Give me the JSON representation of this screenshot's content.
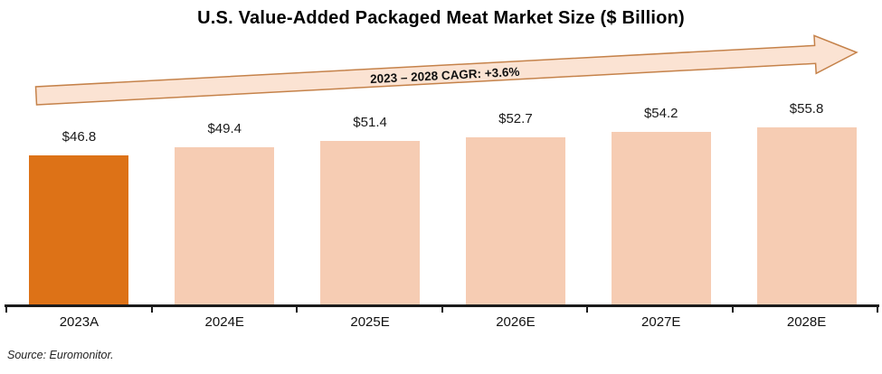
{
  "title": "U.S. Value-Added Packaged Meat Market Size ($ Billion)",
  "source": "Source: Euromonitor.",
  "colors": {
    "actual_bar": "#DD7217",
    "estimate_bar": "#F6CCB3",
    "arrow_fill": "#FBE3D3",
    "arrow_border": "#C5824A",
    "axis": "#1B1B1B"
  },
  "chart_data": {
    "type": "bar",
    "title": "U.S. Value-Added Packaged Meat Market Size ($ Billion)",
    "categories": [
      "2023A",
      "2024E",
      "2025E",
      "2026E",
      "2027E",
      "2028E"
    ],
    "values": [
      46.8,
      49.4,
      51.4,
      52.7,
      54.2,
      55.8
    ],
    "value_labels": [
      "$46.8",
      "$49.4",
      "$51.4",
      "$52.7",
      "$54.2",
      "$55.8"
    ],
    "highlight_index": 0,
    "annotation": "2023 – 2028 CAGR: +3.6%",
    "xlabel": "",
    "ylabel": "",
    "ylim": [
      0,
      58
    ],
    "grid": false,
    "legend_position": "none",
    "source_note": "Source: Euromonitor."
  }
}
